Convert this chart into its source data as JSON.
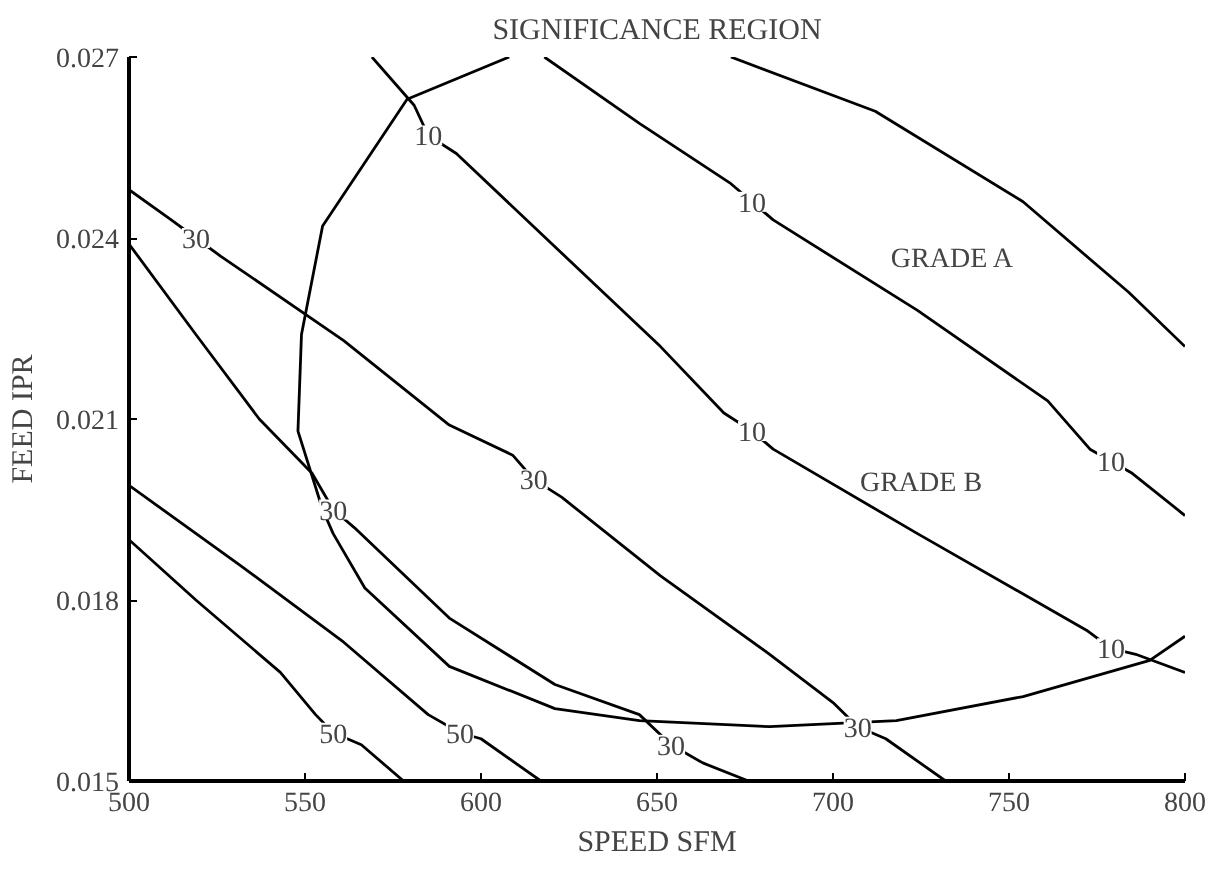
{
  "chart_data": {
    "type": "line",
    "title": "SIGNIFICANCE REGION",
    "xlabel": "SPEED SFM",
    "ylabel": "FEED IPR",
    "xlim": [
      500,
      800
    ],
    "ylim": [
      0.015,
      0.027
    ],
    "xticks": [
      500,
      550,
      600,
      650,
      700,
      750,
      800
    ],
    "yticks": [
      0.015,
      0.018,
      0.021,
      0.024,
      0.027
    ],
    "grid": false,
    "series": [
      {
        "color": "#000000",
        "x": [
          569,
          581,
          585,
          593,
          651,
          669,
          677,
          683,
          724,
          772,
          779,
          786,
          800
        ],
        "values": [
          0.027,
          0.0262,
          0.0257,
          0.0254,
          0.0222,
          0.0211,
          0.0208,
          0.0205,
          0.0191,
          0.0175,
          0.0172,
          0.0171,
          0.0168
        ]
      },
      {
        "color": "#000000",
        "x": [
          618,
          645,
          671,
          677,
          683,
          724,
          761,
          773,
          779,
          785,
          800
        ],
        "values": [
          0.027,
          0.0259,
          0.0249,
          0.0246,
          0.0243,
          0.0228,
          0.0213,
          0.0205,
          0.0203,
          0.0201,
          0.0194
        ]
      },
      {
        "color": "#000000",
        "x": [
          500,
          512,
          519,
          526,
          561,
          591,
          609,
          615,
          623,
          651,
          682,
          700,
          707,
          715,
          732
        ],
        "values": [
          0.0248,
          0.0243,
          0.024,
          0.0237,
          0.0223,
          0.0209,
          0.0204,
          0.02,
          0.0197,
          0.0184,
          0.0171,
          0.0163,
          0.0159,
          0.0157,
          0.015
        ]
      },
      {
        "color": "#000000",
        "x": [
          500,
          519,
          537,
          552,
          558,
          564,
          591,
          621,
          645,
          654,
          663,
          676
        ],
        "values": [
          0.0239,
          0.0224,
          0.021,
          0.0201,
          0.0195,
          0.0192,
          0.0177,
          0.0166,
          0.0161,
          0.0156,
          0.0153,
          0.015
        ]
      },
      {
        "color": "#000000",
        "x": [
          500,
          531,
          561,
          585,
          594,
          600,
          617
        ],
        "values": [
          0.0199,
          0.0186,
          0.0173,
          0.0161,
          0.0158,
          0.0157,
          0.015
        ]
      },
      {
        "color": "#000000",
        "x": [
          500,
          519,
          543,
          553,
          558,
          566,
          578
        ],
        "values": [
          0.019,
          0.018,
          0.0168,
          0.0161,
          0.0158,
          0.0156,
          0.015
        ]
      },
      {
        "color": "#000000",
        "x": [
          608,
          579,
          555,
          549,
          548,
          555,
          558,
          567,
          591,
          621,
          645,
          682,
          718,
          754,
          790,
          800
        ],
        "values": [
          0.027,
          0.0263,
          0.0242,
          0.0224,
          0.0208,
          0.0195,
          0.0191,
          0.0182,
          0.0169,
          0.0162,
          0.016,
          0.0159,
          0.016,
          0.0164,
          0.017,
          0.0174
        ]
      },
      {
        "color": "#000000",
        "x": [
          671,
          712,
          754,
          784,
          800
        ],
        "values": [
          0.027,
          0.0261,
          0.0246,
          0.0231,
          0.0222
        ]
      }
    ],
    "annotations": [
      {
        "text": "10",
        "x": 585,
        "y": 0.0257
      },
      {
        "text": "10",
        "x": 677,
        "y": 0.0246
      },
      {
        "text": "10",
        "x": 779,
        "y": 0.0203
      },
      {
        "text": "10",
        "x": 677,
        "y": 0.0208
      },
      {
        "text": "10",
        "x": 779,
        "y": 0.0172
      },
      {
        "text": "30",
        "x": 519,
        "y": 0.024
      },
      {
        "text": "30",
        "x": 558,
        "y": 0.0195
      },
      {
        "text": "30",
        "x": 615,
        "y": 0.02
      },
      {
        "text": "30",
        "x": 707,
        "y": 0.0159
      },
      {
        "text": "30",
        "x": 654,
        "y": 0.0156
      },
      {
        "text": "50",
        "x": 558,
        "y": 0.0158
      },
      {
        "text": "50",
        "x": 594,
        "y": 0.0158
      },
      "GRADE A",
      "GRADE B"
    ]
  }
}
